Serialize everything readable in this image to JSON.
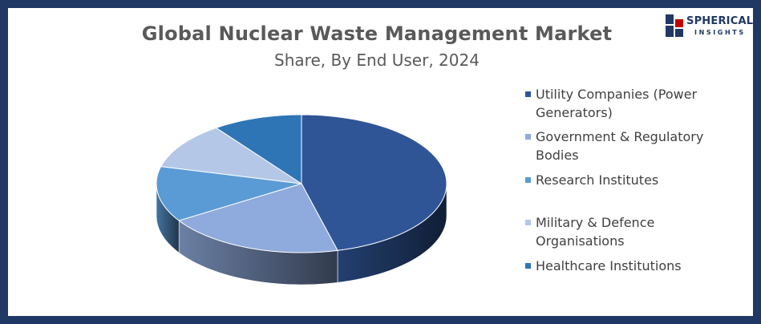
{
  "chart_data": {
    "type": "pie",
    "title": "Global Nuclear Waste Management Market",
    "subtitle": "Share, By End User, 2024",
    "categories": [
      "Utility Companies (Power Generators)",
      "Government & Regulatory Bodies",
      "Research Institutes",
      "Military & Defence Organisations",
      "Healthcare Institutions"
    ],
    "values": [
      46,
      20,
      13,
      11,
      10
    ],
    "unit": "%",
    "colors": [
      "#2f5597",
      "#8faadc",
      "#5b9bd5",
      "#b4c7e7",
      "#2e75b6"
    ],
    "legend_position": "right",
    "style": "3d"
  },
  "logo": {
    "word": "SPHERICAL",
    "sub": "INSIGHTS"
  }
}
